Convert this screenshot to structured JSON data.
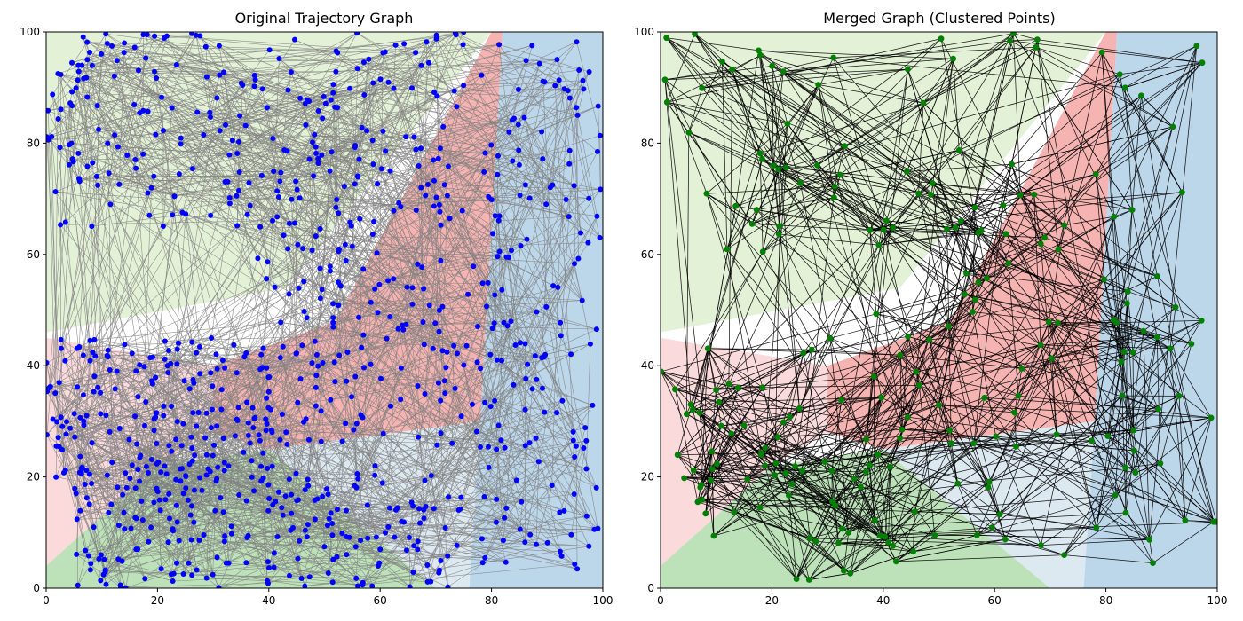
{
  "chart_data": [
    {
      "type": "network",
      "title": "Original Trajectory Graph",
      "xlim": [
        0,
        100
      ],
      "ylim": [
        0,
        100
      ],
      "x_ticks": [
        0,
        20,
        40,
        60,
        80,
        100
      ],
      "y_ticks": [
        0,
        20,
        40,
        60,
        80,
        100
      ],
      "node_color": "#0000ff",
      "edge_color": "#808080",
      "approx_node_count": 1000,
      "node_clusters": [
        {
          "x_range": [
            0,
            75
          ],
          "y_range": [
            65,
            100
          ],
          "count": 260
        },
        {
          "x_range": [
            0,
            40
          ],
          "y_range": [
            18,
            45
          ],
          "count": 190
        },
        {
          "x_range": [
            38,
            82
          ],
          "y_range": [
            25,
            68
          ],
          "count": 170
        },
        {
          "x_range": [
            5,
            75
          ],
          "y_range": [
            0,
            22
          ],
          "count": 230
        },
        {
          "x_range": [
            78,
            100
          ],
          "y_range": [
            0,
            100
          ],
          "count": 150
        }
      ],
      "regions": [
        {
          "name": "top-left region",
          "color": "#e3f1d6",
          "polygon": [
            [
              0,
              46
            ],
            [
              43,
              54
            ],
            [
              80,
              100
            ],
            [
              0,
              100
            ]
          ]
        },
        {
          "name": "upper red region",
          "color": "#f5b3b1",
          "polygon": [
            [
              30,
              40
            ],
            [
              52,
              48
            ],
            [
              80,
              100
            ],
            [
              82,
              100
            ],
            [
              78,
              30
            ],
            [
              40,
              25
            ],
            [
              30,
              28
            ]
          ]
        },
        {
          "name": "left pink region",
          "color": "#fadadb",
          "polygon": [
            [
              0,
              45
            ],
            [
              30,
              40
            ],
            [
              30,
              28
            ],
            [
              20,
              22
            ],
            [
              0,
              4
            ]
          ]
        },
        {
          "name": "bottom green region",
          "color": "#bde2b9",
          "polygon": [
            [
              0,
              4
            ],
            [
              20,
              22
            ],
            [
              40,
              25
            ],
            [
              70,
              0
            ],
            [
              0,
              0
            ]
          ]
        },
        {
          "name": "light blue region",
          "color": "#dde9f1",
          "polygon": [
            [
              40,
              25
            ],
            [
              78,
              30
            ],
            [
              76,
              0
            ],
            [
              70,
              0
            ]
          ]
        },
        {
          "name": "right blue region",
          "color": "#bcd6ea",
          "polygon": [
            [
              82,
              100
            ],
            [
              100,
              100
            ],
            [
              100,
              0
            ],
            [
              76,
              0
            ],
            [
              78,
              30
            ]
          ]
        }
      ]
    },
    {
      "type": "network",
      "title": "Merged Graph (Clustered Points)",
      "xlim": [
        0,
        100
      ],
      "ylim": [
        0,
        100
      ],
      "x_ticks": [
        0,
        20,
        40,
        60,
        80,
        100
      ],
      "y_ticks": [
        0,
        20,
        40,
        60,
        80,
        100
      ],
      "node_color": "#008000",
      "edge_color": "#000000",
      "approx_node_count": 230,
      "node_clusters": [
        {
          "x_range": [
            0,
            75
          ],
          "y_range": [
            60,
            100
          ],
          "count": 60
        },
        {
          "x_range": [
            0,
            40
          ],
          "y_range": [
            18,
            45
          ],
          "count": 45
        },
        {
          "x_range": [
            38,
            82
          ],
          "y_range": [
            25,
            70
          ],
          "count": 45
        },
        {
          "x_range": [
            5,
            75
          ],
          "y_range": [
            0,
            22
          ],
          "count": 45
        },
        {
          "x_range": [
            78,
            100
          ],
          "y_range": [
            0,
            100
          ],
          "count": 40
        }
      ],
      "regions": [
        {
          "name": "top-left region",
          "color": "#e3f1d6",
          "polygon": [
            [
              0,
              46
            ],
            [
              43,
              54
            ],
            [
              80,
              100
            ],
            [
              0,
              100
            ]
          ]
        },
        {
          "name": "upper red region",
          "color": "#f5b3b1",
          "polygon": [
            [
              30,
              40
            ],
            [
              52,
              48
            ],
            [
              80,
              100
            ],
            [
              82,
              100
            ],
            [
              78,
              30
            ],
            [
              40,
              25
            ],
            [
              30,
              28
            ]
          ]
        },
        {
          "name": "left pink region",
          "color": "#fadadb",
          "polygon": [
            [
              0,
              45
            ],
            [
              30,
              40
            ],
            [
              30,
              28
            ],
            [
              20,
              22
            ],
            [
              0,
              4
            ]
          ]
        },
        {
          "name": "bottom green region",
          "color": "#bde2b9",
          "polygon": [
            [
              0,
              4
            ],
            [
              20,
              22
            ],
            [
              40,
              25
            ],
            [
              70,
              0
            ],
            [
              0,
              0
            ]
          ]
        },
        {
          "name": "light blue region",
          "color": "#dde9f1",
          "polygon": [
            [
              40,
              25
            ],
            [
              78,
              30
            ],
            [
              76,
              0
            ],
            [
              70,
              0
            ]
          ]
        },
        {
          "name": "right blue region",
          "color": "#bcd6ea",
          "polygon": [
            [
              82,
              100
            ],
            [
              100,
              100
            ],
            [
              100,
              0
            ],
            [
              76,
              0
            ],
            [
              78,
              30
            ]
          ]
        }
      ]
    }
  ]
}
